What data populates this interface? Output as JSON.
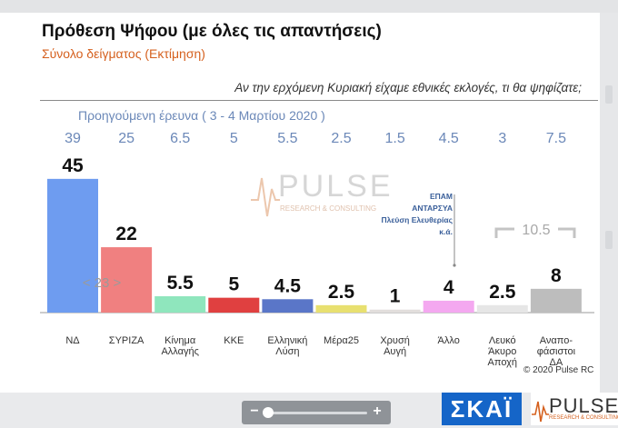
{
  "title": "Πρόθεση Ψήφου (με όλες τις απαντήσεις)",
  "subtitle": "Σύνολο δείγματος   (Εκτίμηση)",
  "question": "Αν την ερχόμενη Κυριακή είχαμε εθνικές εκλογές, τι θα ψηφίζατε;",
  "previous_label": "Προηγούμενη έρευνα  ( 3 - 4  Μαρτίου 2020 )",
  "copyright": "© 2020 Pulse RC",
  "watermark": {
    "word": "PULSE",
    "sub": "RESEARCH & CONSULTING"
  },
  "colors": {
    "accent_orange": "#d5601e",
    "prev_blue": "#6b88b8",
    "skai_blue": "#1565c8"
  },
  "zoom": {
    "minus": "−",
    "plus": "+"
  },
  "logos": {
    "skai": "ΣΚΑΪ",
    "pulse": "PULSE",
    "pulse_sub": "RESEARCH & CONSULTING"
  },
  "chart_data": {
    "type": "bar",
    "title": "Πρόθεση Ψήφου (με όλες τις απαντήσεις)",
    "ylim": [
      0,
      50
    ],
    "categories": [
      [
        "ΝΔ"
      ],
      [
        "ΣΥΡΙΖΑ"
      ],
      [
        "Κίνημα",
        "Αλλαγής"
      ],
      [
        "ΚΚΕ"
      ],
      [
        "Ελληνική",
        "Λύση"
      ],
      [
        "Μέρα25"
      ],
      [
        "Χρυσή",
        "Αυγή"
      ],
      [
        "Άλλο"
      ],
      [
        "Λευκό",
        "Άκυρο",
        "Αποχή"
      ],
      [
        "Αναπο-",
        "φάσιστοι",
        "ΔΑ"
      ]
    ],
    "values": [
      45,
      22,
      5.5,
      5,
      4.5,
      2.5,
      1,
      4,
      2.5,
      8
    ],
    "value_labels": [
      "45",
      "22",
      "5.5",
      "5",
      "4.5",
      "2.5",
      "1",
      "4",
      "2.5",
      "8"
    ],
    "previous_values": [
      "39",
      "25",
      "6.5",
      "5",
      "5.5",
      "2.5",
      "1.5",
      "4.5",
      "3",
      "7.5"
    ],
    "colors": [
      "#6e9cf0",
      "#f08080",
      "#8fe6bd",
      "#e04040",
      "#5a76c8",
      "#e8e070",
      "#e2dedc",
      "#f4a8f0",
      "#e6e6e6",
      "#bdbdbd"
    ],
    "annotations": {
      "syriza_compare": "< 23 >",
      "other_breakdown": [
        "ΕΠΑΜ",
        "ΑΝΤΑΡΣΥΑ",
        "Πλεύση Ελευθερίας",
        "κ.ά."
      ],
      "combined_label": "10.5"
    },
    "grid": false,
    "legend": "none"
  }
}
